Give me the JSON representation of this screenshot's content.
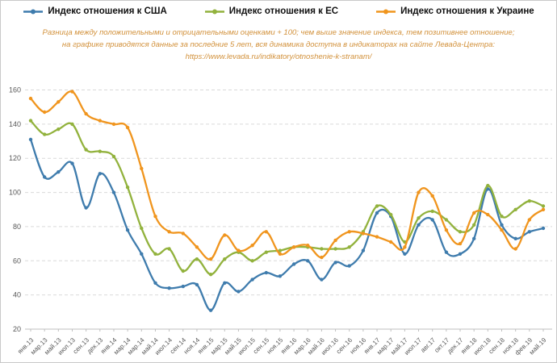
{
  "colors": {
    "usa": "#3f7cad",
    "eu": "#92b23d",
    "ukraine": "#f0951e",
    "subtitle_text": "#d2913b",
    "grid": "#d9d9d9",
    "axis": "#bfbfbf",
    "tick_text": "#595959",
    "legend_text": "#111111"
  },
  "legend": [
    {
      "label": "Индекс отношения к США",
      "color": "#3f7cad"
    },
    {
      "label": "Индекс отношения к ЕС",
      "color": "#92b23d"
    },
    {
      "label": "Индекс отношения к Украине",
      "color": "#f0951e"
    }
  ],
  "subtitle_lines": [
    "Разница между положительными и отрицательными оценками + 100;  чем выше значение индекса, тем позитивнее отношение;",
    "на графике приводятся данные за последние 5 лет, вся  динамика доступна в индикаторах на сайте Левада-Центра:",
    "https://www.levada.ru/indikatory/otnoshenie-k-stranam/"
  ],
  "chart_data": {
    "type": "line",
    "smooth": true,
    "grid": "horizontal-dashed",
    "legend_position": "top",
    "ylim": [
      20,
      160
    ],
    "yticks": [
      20,
      40,
      60,
      80,
      100,
      120,
      140,
      160
    ],
    "categories": [
      "янв.13",
      "мар.13",
      "май.13",
      "июл.13",
      "сен.13",
      "дек.13",
      "янв.14",
      "мар.14",
      "мар.14",
      "май.14",
      "июл.14",
      "сен.14",
      "ноя.14",
      "янв.15",
      "мар.15",
      "май.15",
      "июл.15",
      "сен.15",
      "ноя.15",
      "янв.16",
      "мар.16",
      "май.16",
      "июл.16",
      "сен.16",
      "ноя.16",
      "янв.17",
      "мар.17",
      "май.17",
      "июл.17",
      "авг.17",
      "окт.17",
      "дек.17",
      "янв.18",
      "июл.18",
      "сен.18",
      "ноя.18",
      "фев.19",
      "май.19"
    ],
    "series": [
      {
        "name": "Индекс отношения к США",
        "color": "#3f7cad",
        "values": [
          131,
          109,
          112,
          117,
          91,
          111,
          100,
          78,
          64,
          47,
          44,
          45,
          46,
          31,
          47,
          42,
          49,
          53,
          51,
          58,
          60,
          49,
          59,
          57,
          66,
          88,
          86,
          64,
          81,
          84,
          65,
          64,
          73,
          102,
          81,
          73,
          77,
          79
        ]
      },
      {
        "name": "Индекс отношения к ЕС",
        "color": "#92b23d",
        "values": [
          142,
          134,
          137,
          140,
          125,
          124,
          121,
          103,
          79,
          64,
          67,
          54,
          61,
          52,
          61,
          65,
          60,
          65,
          66,
          68,
          68,
          67,
          67,
          68,
          77,
          92,
          87,
          71,
          85,
          89,
          84,
          77,
          81,
          104,
          86,
          90,
          95,
          92
        ]
      },
      {
        "name": "Индекс отношения к Украине",
        "color": "#f0951e",
        "values": [
          155,
          147,
          153,
          159,
          146,
          142,
          140,
          138,
          114,
          86,
          77,
          76,
          68,
          61,
          75,
          66,
          69,
          77,
          64,
          68,
          69,
          62,
          72,
          77,
          76,
          74,
          71,
          68,
          100,
          98,
          78,
          70,
          88,
          87,
          78,
          67,
          84,
          90
        ]
      }
    ]
  }
}
